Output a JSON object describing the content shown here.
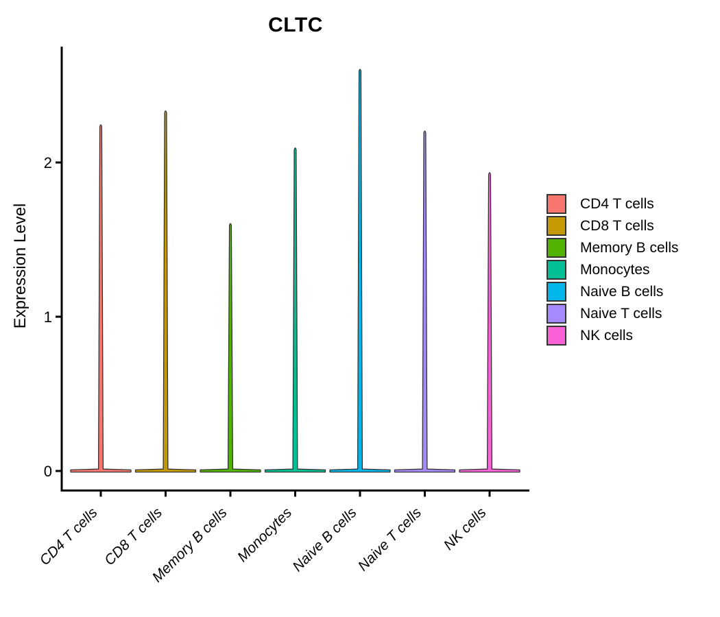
{
  "chart_data": {
    "type": "violin",
    "title": "CLTC",
    "ylabel": "Expression Level",
    "xlabel": "",
    "ylim": [
      -0.06,
      2.78
    ],
    "yticks": [
      0,
      1,
      2
    ],
    "grid": false,
    "legend_position": "right",
    "categories": [
      "CD4 T cells",
      "CD8 T cells",
      "Memory B cells",
      "Monocytes",
      "Naive B cells",
      "Naive T cells",
      "NK cells"
    ],
    "series": [
      {
        "name": "CD4 T cells",
        "color": "#F8766D",
        "max": 2.25,
        "base_value": 0,
        "base_width_frac": 0.93
      },
      {
        "name": "CD8 T cells",
        "color": "#C49A00",
        "max": 2.34,
        "base_value": 0,
        "base_width_frac": 0.93
      },
      {
        "name": "Memory B cells",
        "color": "#53B400",
        "max": 1.61,
        "base_value": 0,
        "base_width_frac": 0.93
      },
      {
        "name": "Monocytes",
        "color": "#00C094",
        "max": 2.1,
        "base_value": 0,
        "base_width_frac": 0.93
      },
      {
        "name": "Naive B cells",
        "color": "#00B6EB",
        "max": 2.61,
        "base_value": 0,
        "base_width_frac": 0.93
      },
      {
        "name": "Naive T cells",
        "color": "#A58AFF",
        "max": 2.21,
        "base_value": 0,
        "base_width_frac": 0.93
      },
      {
        "name": "NK cells",
        "color": "#FB61D7",
        "max": 1.94,
        "base_value": 0,
        "base_width_frac": 0.93
      }
    ]
  },
  "colors": {
    "violin_outline": "#333333",
    "axis": "#000000",
    "text": "#000000",
    "background": "#ffffff"
  }
}
